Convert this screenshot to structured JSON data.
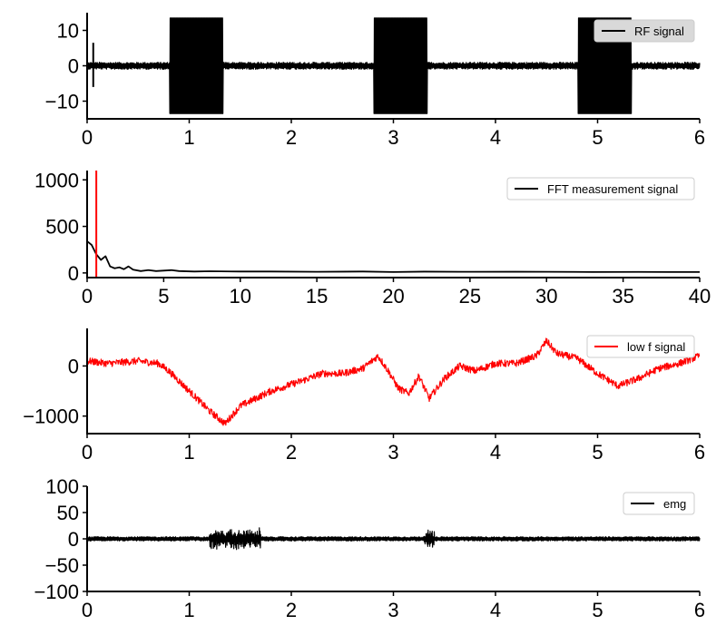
{
  "chart_data": [
    {
      "type": "line",
      "xlim": [
        0,
        6
      ],
      "ylim": [
        -15,
        15
      ],
      "x_ticks": [
        0,
        1,
        2,
        3,
        4,
        5,
        6
      ],
      "y_ticks": [
        -10,
        0,
        10
      ],
      "x_tick_labels": [
        "0",
        "1",
        "2",
        "3",
        "4",
        "5",
        "6"
      ],
      "y_tick_labels": [
        "−10",
        "0",
        "10"
      ],
      "legend": {
        "position": "top-right",
        "box_fill": "#d9d9d9"
      },
      "series": [
        {
          "name": "RF signal",
          "color": "#000000",
          "baseline_amplitude": 1.0,
          "spike": {
            "x": 0.06,
            "ymin": -6,
            "ymax": 6.5
          },
          "bursts": [
            {
              "x_start": 0.81,
              "x_end": 1.33,
              "amplitude": 13.5
            },
            {
              "x_start": 2.81,
              "x_end": 3.33,
              "amplitude": 13.5
            },
            {
              "x_start": 4.81,
              "x_end": 5.33,
              "amplitude": 13.5
            }
          ]
        }
      ]
    },
    {
      "type": "line",
      "xlim": [
        0,
        40
      ],
      "ylim": [
        -50,
        1100
      ],
      "x_ticks": [
        0,
        5,
        10,
        15,
        20,
        25,
        30,
        35,
        40
      ],
      "y_ticks": [
        0,
        500,
        1000
      ],
      "x_tick_labels": [
        "0",
        "5",
        "10",
        "15",
        "20",
        "25",
        "30",
        "35",
        "40"
      ],
      "y_tick_labels": [
        "0",
        "500",
        "1000"
      ],
      "legend": {
        "position": "top-right",
        "box_fill": "#ffffff"
      },
      "series": [
        {
          "name": "FFT measurement signal",
          "color": "#000000",
          "x": [
            0,
            0.3,
            0.6,
            0.9,
            1.2,
            1.5,
            1.8,
            2.1,
            2.4,
            2.7,
            3,
            3.5,
            4,
            4.5,
            5,
            5.5,
            6,
            7,
            8,
            10,
            12,
            15,
            18,
            20,
            22,
            25,
            28,
            30,
            33,
            36,
            38,
            40
          ],
          "y": [
            340,
            300,
            200,
            140,
            180,
            70,
            50,
            60,
            40,
            70,
            35,
            20,
            30,
            20,
            25,
            30,
            20,
            15,
            18,
            15,
            15,
            12,
            15,
            10,
            14,
            12,
            13,
            12,
            10,
            11,
            10,
            10
          ]
        }
      ],
      "marker_line": {
        "x": 0.6,
        "color": "#ff0000"
      }
    },
    {
      "type": "line",
      "xlim": [
        0,
        6
      ],
      "ylim": [
        -1350,
        750
      ],
      "x_ticks": [
        0,
        1,
        2,
        3,
        4,
        5,
        6
      ],
      "y_ticks": [
        -1000,
        0
      ],
      "x_tick_labels": [
        "0",
        "1",
        "2",
        "3",
        "4",
        "5",
        "6"
      ],
      "y_tick_labels": [
        "−1000",
        "0"
      ],
      "legend": {
        "position": "top-right",
        "box_fill": "#ffffff"
      },
      "series": [
        {
          "name": "low f signal",
          "color": "#ff0000",
          "noise_amplitude": 70,
          "x": [
            0,
            0.2,
            0.5,
            0.7,
            0.8,
            1.0,
            1.2,
            1.35,
            1.5,
            1.8,
            2.1,
            2.3,
            2.5,
            2.7,
            2.85,
            2.95,
            3.05,
            3.15,
            3.25,
            3.35,
            3.5,
            3.65,
            3.8,
            4.0,
            4.2,
            4.4,
            4.5,
            4.6,
            4.8,
            5.0,
            5.2,
            5.4,
            5.6,
            5.8,
            6.0
          ],
          "y": [
            100,
            50,
            100,
            50,
            -100,
            -500,
            -900,
            -1150,
            -800,
            -500,
            -300,
            -150,
            -150,
            -50,
            200,
            -100,
            -450,
            -550,
            -200,
            -650,
            -250,
            0,
            -100,
            50,
            50,
            200,
            500,
            250,
            150,
            -150,
            -400,
            -250,
            -50,
            50,
            200
          ]
        }
      ]
    },
    {
      "type": "line",
      "xlim": [
        0,
        6
      ],
      "ylim": [
        -100,
        100
      ],
      "x_ticks": [
        0,
        1,
        2,
        3,
        4,
        5,
        6
      ],
      "y_ticks": [
        -100,
        -50,
        0,
        50,
        100
      ],
      "x_tick_labels": [
        "0",
        "1",
        "2",
        "3",
        "4",
        "5",
        "6"
      ],
      "y_tick_labels": [
        "−100",
        "−50",
        "0",
        "50",
        "100"
      ],
      "legend": {
        "position": "top-right",
        "box_fill": "#ffffff"
      },
      "series": [
        {
          "name": "emg",
          "color": "#000000",
          "baseline_amplitude": 4,
          "bursts": [
            {
              "x_start": 1.2,
              "x_end": 1.7,
              "amplitude": 22
            },
            {
              "x_start": 3.3,
              "x_end": 3.4,
              "amplitude": 20
            }
          ]
        }
      ]
    }
  ]
}
